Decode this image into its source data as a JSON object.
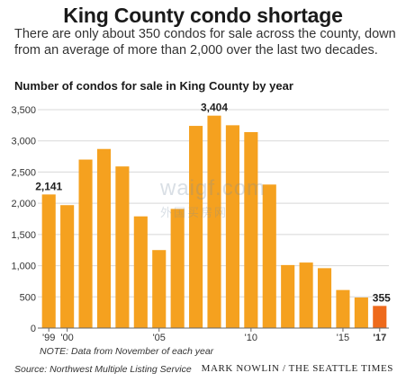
{
  "title": "King County condo shortage",
  "subtitle": "There are only about 350 condos for sale across the county, down from an average of more than 2,000 over the last two decades.",
  "note": "NOTE: Data from November of each year",
  "source": "Source: Northwest Multiple Listing Service",
  "credit": "MARK NOWLIN / THE SEATTLE TIMES",
  "watermark": "waigf.com",
  "watermark_sub": "外国买房网",
  "colors": {
    "bar": "#f5a11f",
    "highlight": "#ee6a1c",
    "grid": "#d8d8d8",
    "axis": "#666666"
  },
  "chart_data": {
    "type": "bar",
    "title": "Number of condos for sale in King County by year",
    "categories": [
      "1999",
      "2000",
      "2001",
      "2002",
      "2003",
      "2004",
      "2005",
      "2006",
      "2007",
      "2008",
      "2009",
      "2010",
      "2011",
      "2012",
      "2013",
      "2014",
      "2015",
      "2016",
      "2017"
    ],
    "values": [
      2141,
      1970,
      2700,
      2870,
      2590,
      1790,
      1250,
      1910,
      3240,
      3404,
      3250,
      3140,
      2300,
      1010,
      1050,
      960,
      610,
      490,
      355
    ],
    "ylim": [
      0,
      3500
    ],
    "yticks": [
      0,
      500,
      1000,
      1500,
      2000,
      2500,
      3000,
      3500
    ],
    "ytick_labels": [
      "0",
      "500",
      "1,000",
      "1,500",
      "2,000",
      "2,500",
      "3,000",
      "3,500"
    ],
    "xtick_labels": [
      {
        "index": 0,
        "label": "'99"
      },
      {
        "index": 1,
        "label": "'00"
      },
      {
        "index": 6,
        "label": "'05"
      },
      {
        "index": 11,
        "label": "'10"
      },
      {
        "index": 16,
        "label": "'15"
      },
      {
        "index": 18,
        "label": "'17"
      }
    ],
    "data_labels": [
      {
        "index": 0,
        "label": "2,141"
      },
      {
        "index": 9,
        "label": "3,404"
      },
      {
        "index": 18,
        "label": "355"
      }
    ],
    "highlight_index": 18,
    "grid": true
  }
}
